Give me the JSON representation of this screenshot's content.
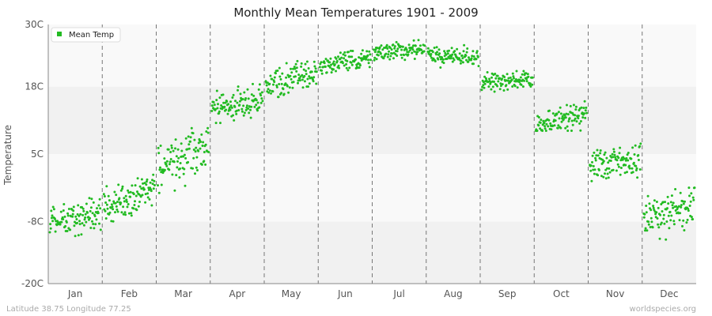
{
  "footer": {
    "location": "Latitude 38.75 Longitude 77.25",
    "credit": "worldspecies.org"
  },
  "colors": {
    "series": "#22bb22",
    "band_light": "#f9f9f9",
    "band_dark": "#f1f1f1",
    "divider": "#777777"
  },
  "chart_data": {
    "type": "scatter",
    "title": "Monthly Mean Temperatures 1901 - 2009",
    "xlabel": "",
    "ylabel": "Temperature",
    "categories": [
      "Jan",
      "Feb",
      "Mar",
      "Apr",
      "May",
      "Jun",
      "Jul",
      "Aug",
      "Sep",
      "Oct",
      "Nov",
      "Dec"
    ],
    "yticks": [
      "-20C",
      "-8C",
      "5C",
      "18C",
      "30C"
    ],
    "ylim": [
      -20,
      30
    ],
    "grid": false,
    "legend": {
      "position": "top-left",
      "entries": [
        "Mean Temp"
      ]
    },
    "series": [
      {
        "name": "Mean Temp",
        "color": "#22bb22",
        "monthly_summary": [
          {
            "month": "Jan",
            "start": -8.5,
            "end": -6.0,
            "min": -11.5,
            "max": -3.5
          },
          {
            "month": "Feb",
            "start": -5.5,
            "end": -1.5,
            "min": -8.0,
            "max": 1.0
          },
          {
            "month": "Mar",
            "start": 1.5,
            "end": 7.0,
            "min": -2.5,
            "max": 10.0
          },
          {
            "month": "Apr",
            "start": 13.5,
            "end": 15.5,
            "min": 11.0,
            "max": 18.5
          },
          {
            "month": "May",
            "start": 18.0,
            "end": 20.5,
            "min": 16.0,
            "max": 23.0
          },
          {
            "month": "Jun",
            "start": 22.0,
            "end": 23.5,
            "min": 20.5,
            "max": 25.5
          },
          {
            "month": "Jul",
            "start": 24.5,
            "end": 25.5,
            "min": 22.5,
            "max": 27.0
          },
          {
            "month": "Aug",
            "start": 24.0,
            "end": 23.5,
            "min": 21.5,
            "max": 26.0
          },
          {
            "month": "Sep",
            "start": 19.0,
            "end": 19.5,
            "min": 16.5,
            "max": 21.0
          },
          {
            "month": "Oct",
            "start": 10.5,
            "end": 13.0,
            "min": 9.5,
            "max": 15.5
          },
          {
            "month": "Nov",
            "start": 2.5,
            "end": 4.5,
            "min": -1.0,
            "max": 7.0
          },
          {
            "month": "Dec",
            "start": -7.5,
            "end": -4.5,
            "min": -11.5,
            "max": -1.5
          }
        ]
      }
    ]
  }
}
